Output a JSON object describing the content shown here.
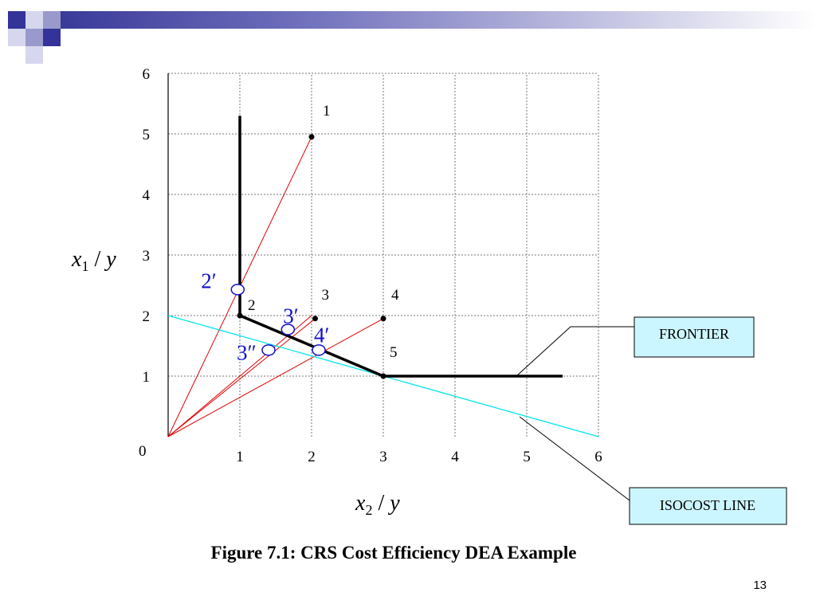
{
  "slide": {
    "page_number": "13",
    "colors": {
      "band_dark": "#333399",
      "band_light": "#9999cc"
    }
  },
  "chart_data": {
    "type": "line",
    "title": "Figure 7.1: CRS Cost Efficiency DEA Example",
    "xlabel": {
      "var": "x",
      "sub": "2",
      "denom": "y"
    },
    "ylabel": {
      "var": "x",
      "sub": "1",
      "denom": "y"
    },
    "xlim": [
      0,
      6
    ],
    "ylim": [
      0,
      6
    ],
    "xticks": [
      "1",
      "2",
      "3",
      "4",
      "5",
      "6"
    ],
    "yticks": [
      "1",
      "2",
      "3",
      "4",
      "5",
      "6"
    ],
    "origin_label": "0",
    "grid": true,
    "points": [
      {
        "label": "1",
        "x": 2.0,
        "y": 4.95
      },
      {
        "label": "2",
        "x": 1.0,
        "y": 2.0
      },
      {
        "label": "3",
        "x": 2.05,
        "y": 1.95
      },
      {
        "label": "4",
        "x": 3.0,
        "y": 1.95
      },
      {
        "label": "5",
        "x": 3.0,
        "y": 1.0
      }
    ],
    "frontier": [
      [
        1.0,
        5.3
      ],
      [
        1.0,
        2.0
      ],
      [
        3.0,
        1.0
      ],
      [
        5.5,
        1.0
      ]
    ],
    "isocost": [
      [
        0,
        2.0
      ],
      [
        6.0,
        0
      ]
    ],
    "rays": [
      [
        [
          0,
          0
        ],
        [
          2.0,
          4.95
        ]
      ],
      [
        [
          0,
          0
        ],
        [
          2.05,
          1.95
        ]
      ],
      [
        [
          0,
          0
        ],
        [
          3.0,
          1.95
        ]
      ],
      [
        [
          0,
          0
        ],
        [
          2.0,
          2.0
        ]
      ]
    ],
    "projections": [
      {
        "label": "2′",
        "x": 0.97,
        "y": 2.43
      },
      {
        "label": "3′",
        "x": 1.67,
        "y": 1.77
      },
      {
        "label": "4′",
        "x": 2.1,
        "y": 1.43
      },
      {
        "label": "3″",
        "x": 1.4,
        "y": 1.43
      }
    ],
    "callouts": [
      {
        "text": "FRONTIER"
      },
      {
        "text": "ISOCOST LINE"
      }
    ],
    "colors": {
      "frontier": "#000000",
      "isocost": "#00e5ee",
      "rays": "#e00000",
      "projection": "#1010cc",
      "callout_fill": "#ccf6ff",
      "grid": "#777777"
    }
  }
}
